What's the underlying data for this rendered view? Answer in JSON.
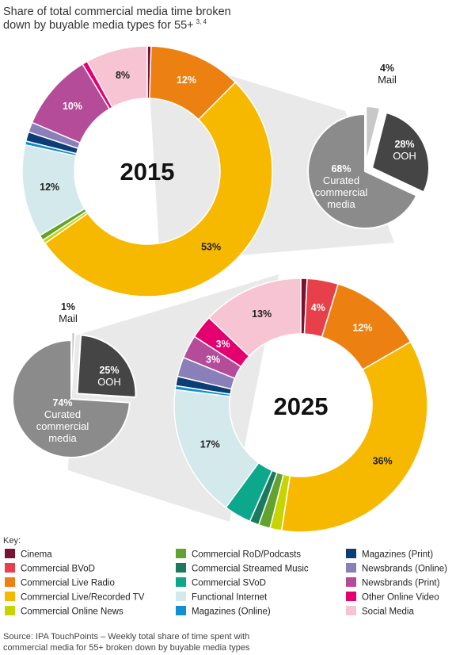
{
  "title_line1": "Share of total commercial media time broken",
  "title_line2": "down by buyable media types for 55+",
  "title_sup": "3, 4",
  "key_title": "Key:",
  "source_line1": "Source: IPA TouchPoints – Weekly total share of time spent with",
  "source_line2": "commercial media for 55+ broken down by buyable media types",
  "categories": [
    {
      "name": "Cinema",
      "color": "#7b1232"
    },
    {
      "name": "Commercial BVoD",
      "color": "#e8404a"
    },
    {
      "name": "Commercial Live Radio",
      "color": "#ec8010"
    },
    {
      "name": "Commercial Live/Recorded TV",
      "color": "#f6b900"
    },
    {
      "name": "Commercial Online News",
      "color": "#c8d400"
    },
    {
      "name": "Commercial RoD/Podcasts",
      "color": "#63a22e"
    },
    {
      "name": "Commercial Streamed Music",
      "color": "#1b7a5e"
    },
    {
      "name": "Commercial SVoD",
      "color": "#0da88c"
    },
    {
      "name": "Functional Internet",
      "color": "#d3e9ec"
    },
    {
      "name": "Magazines (Online)",
      "color": "#0f8fd0"
    },
    {
      "name": "Magazines (Print)",
      "color": "#0b3e74"
    },
    {
      "name": "Newsbrands (Online)",
      "color": "#8a7fb9"
    },
    {
      "name": "Newsbrands (Print)",
      "color": "#b44c9a"
    },
    {
      "name": "Other Online Video",
      "color": "#e4006f"
    },
    {
      "name": "Social Media",
      "color": "#f6c4d2"
    }
  ],
  "chart_data": [
    {
      "type": "pie",
      "title": "2015",
      "values": [
        0.5,
        0,
        12,
        53,
        0.5,
        0.7,
        0,
        0,
        12,
        0.5,
        1.2,
        1.3,
        10,
        0.7,
        8
      ],
      "labels": [
        "",
        "",
        "12%",
        "53%",
        "",
        "",
        "",
        "",
        "12%",
        "",
        "",
        "",
        "10%",
        "",
        "8%"
      ],
      "breakout": {
        "values": [
          4,
          28,
          68
        ],
        "labels": [
          {
            "pct": "4%",
            "name": "Mail"
          },
          {
            "pct": "28%",
            "name": "OOH"
          },
          {
            "pct": "68%",
            "name": "Curated commercial media"
          }
        ],
        "colors": [
          "#c8c8c8",
          "#454545",
          "#8b8b8b"
        ]
      }
    },
    {
      "type": "pie",
      "title": "2025",
      "values": [
        0.8,
        4,
        12,
        36,
        1.5,
        1.5,
        1.2,
        3.5,
        17,
        0.5,
        1.2,
        2.5,
        3,
        3,
        13
      ],
      "labels": [
        "",
        "4%",
        "12%",
        "36%",
        "",
        "",
        "",
        "",
        "17%",
        "",
        "",
        "",
        "3%",
        "3%",
        "13%"
      ],
      "breakout": {
        "values": [
          1,
          25,
          74
        ],
        "labels": [
          {
            "pct": "1%",
            "name": "Mail"
          },
          {
            "pct": "25%",
            "name": "OOH"
          },
          {
            "pct": "74%",
            "name": "Curated commercial media"
          }
        ],
        "colors": [
          "#c8c8c8",
          "#454545",
          "#8b8b8b"
        ]
      }
    }
  ]
}
